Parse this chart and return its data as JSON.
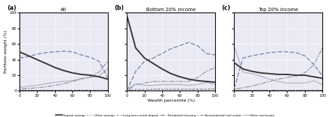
{
  "titles": [
    "All",
    "Bottom 20% income",
    "Top 20% income"
  ],
  "panel_labels": [
    "(a)",
    "(b)",
    "(c)"
  ],
  "xlabel": "Wealth percentile (%)",
  "ylabel": "Portfolio weight (%)",
  "ylim": [
    0,
    100
  ],
  "xlim": [
    0,
    100
  ],
  "xticks": [
    0,
    20,
    40,
    60,
    80,
    100
  ],
  "yticks": [
    0,
    20,
    40,
    60,
    80,
    100
  ],
  "bg_color": "#eaeaf4",
  "colors": {
    "deposit": "#3a3a3a",
    "other_sav": "#555555",
    "lt_rental": "#9999bb",
    "residential": "#7777aa",
    "nonres": "#888899",
    "other_real": "#aaaabb"
  },
  "all": {
    "deposit": [
      50,
      45,
      40,
      35,
      30,
      26,
      23,
      21,
      20,
      18,
      15
    ],
    "other_sav": [
      1,
      1,
      1,
      1,
      1,
      1,
      1,
      1,
      1,
      1,
      1
    ],
    "lt_rental": [
      1,
      1,
      1,
      1,
      1,
      1,
      1,
      1,
      1,
      1,
      1
    ],
    "residential": [
      42,
      44,
      47,
      49,
      50,
      51,
      50,
      46,
      43,
      38,
      17
    ],
    "nonres": [
      2,
      3,
      4,
      5,
      7,
      9,
      12,
      15,
      18,
      24,
      38
    ],
    "other_real": [
      4,
      6,
      7,
      9,
      11,
      12,
      13,
      16,
      17,
      19,
      28
    ]
  },
  "bottom20": {
    "deposit": [
      97,
      55,
      42,
      35,
      28,
      22,
      18,
      15,
      13,
      12,
      11
    ],
    "other_sav": [
      1,
      1,
      1,
      2,
      2,
      2,
      2,
      2,
      2,
      2,
      2
    ],
    "lt_rental": [
      1,
      2,
      2,
      2,
      2,
      2,
      2,
      2,
      2,
      2,
      3
    ],
    "residential": [
      0,
      25,
      38,
      42,
      48,
      54,
      58,
      62,
      58,
      48,
      46
    ],
    "nonres": [
      0,
      8,
      10,
      12,
      12,
      12,
      12,
      12,
      17,
      25,
      30
    ],
    "other_real": [
      2,
      9,
      7,
      7,
      8,
      8,
      8,
      7,
      8,
      11,
      8
    ]
  },
  "top20": {
    "deposit": [
      36,
      28,
      25,
      23,
      22,
      21,
      21,
      20,
      20,
      18,
      16
    ],
    "other_sav": [
      1,
      1,
      1,
      1,
      1,
      1,
      1,
      1,
      1,
      1,
      1
    ],
    "lt_rental": [
      1,
      1,
      1,
      1,
      1,
      1,
      1,
      1,
      1,
      1,
      1
    ],
    "residential": [
      3,
      42,
      45,
      47,
      49,
      50,
      50,
      49,
      45,
      34,
      19
    ],
    "nonres": [
      2,
      4,
      6,
      9,
      12,
      15,
      17,
      19,
      23,
      33,
      55
    ],
    "other_real": [
      57,
      24,
      22,
      19,
      15,
      12,
      10,
      10,
      10,
      13,
      8
    ]
  }
}
